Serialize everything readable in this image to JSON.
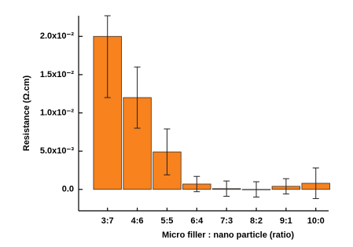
{
  "chart_data": {
    "type": "bar",
    "xlabel": "Micro filler : nano particle (ratio)",
    "ylabel": "Resistance (Ω.cm)",
    "categories": [
      "3:7",
      "4:6",
      "5:5",
      "6:4",
      "7:3",
      "8:2",
      "9:1",
      "10:0"
    ],
    "values": [
      0.02,
      0.012,
      0.0049,
      0.0007,
      0.0001,
      0.0,
      0.0004,
      0.0008
    ],
    "errors": [
      0.008,
      0.004,
      0.003,
      0.001,
      0.001,
      0.001,
      0.001,
      0.002
    ],
    "color": "#f7821e",
    "ylim": [
      -0.0028,
      0.0227
    ],
    "yticks": [
      {
        "value": 0,
        "label": "0.0"
      },
      {
        "value": 0.005,
        "label": "5.0x10⁻³"
      },
      {
        "value": 0.01,
        "label": "1.0x10⁻²"
      },
      {
        "value": 0.015,
        "label": "1.5x10⁻²"
      },
      {
        "value": 0.02,
        "label": "2.0x10⁻²"
      }
    ]
  }
}
